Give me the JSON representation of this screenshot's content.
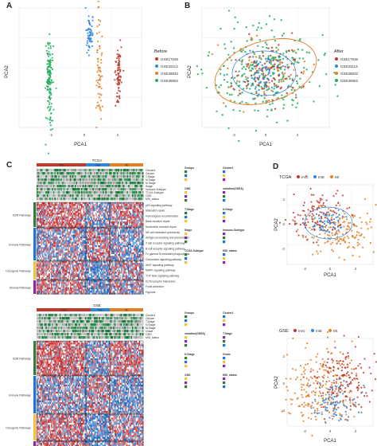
{
  "panels": {
    "A": {
      "letter": "A",
      "xlabel": "PCA1",
      "ylabel": "PCA2",
      "xticks": [
        "-2",
        "0",
        "2"
      ]
    },
    "B": {
      "letter": "B",
      "xlabel": "PCA1",
      "ylabel": "PCA2",
      "xticks": [
        "-2",
        "0",
        "2"
      ]
    },
    "C": {
      "letter": "C"
    },
    "D": {
      "letter": "D"
    }
  },
  "legend_before": {
    "title": "Before",
    "items": [
      "GSE17536",
      "GSE33113",
      "GSE38832",
      "GSE39582"
    ]
  },
  "legend_after": {
    "title": "After",
    "items": [
      "GSE17536",
      "GSE33113",
      "GSE38832",
      "GSE39582"
    ]
  },
  "colors": {
    "GSE17536": "#c0392b",
    "GSE33113": "#2e86de",
    "GSE38832": "#e67e22",
    "GSE39582": "#27ae60",
    "ImG": "#c0392b",
    "ImE": "#2e86de",
    "IIE": "#e67e22",
    "heat_high": "#c62828",
    "heat_low": "#1565c0",
    "heat_mid": "#f5f5f5"
  },
  "heatmap_tcga": {
    "title": "TCGA",
    "annot_rows": [
      "Cluster1",
      "Gender",
      "T.Stage",
      "N.Stage",
      "M.Stage",
      "Stage",
      "Immune.Subtype",
      "TCGA.Subtype",
      "CMS",
      "MSI_status"
    ],
    "groups": [
      "DDR Pathways",
      "Immune Pathways",
      "Oncogenic Pathways",
      "Stromal Pathways"
    ],
    "cluster_labels": [
      "ImG",
      "ImE",
      "IIE"
    ],
    "row_labels": [
      "p53 signaling pathway",
      "Mismatch repair",
      "Homologous recombination",
      "Base excision repair",
      "Nucleotide excision repair",
      "NK cell mediated cytotoxicity",
      "Antigen processing and presentation",
      "T cell receptor signaling pathway",
      "B cell receptor signaling pathway",
      "Fc gamma R-mediated phagocytosis",
      "Chemokine signaling pathway",
      "WNT signaling pathway",
      "MAPK signaling pathway",
      "TGF beta signaling pathway",
      "ECM receptor interaction",
      "Focal adhesion",
      "Hypoxia"
    ],
    "legend_heads": [
      "Groups",
      "Cluster1",
      "CMS",
      "variation(GSEA)",
      "T.Stage",
      "N.Stage",
      "Stage",
      "Immune.Subtype",
      "TCGA.Subtype",
      "MSI_status"
    ]
  },
  "heatmap_gse": {
    "title": "GSE",
    "annot_rows": [
      "Cluster1",
      "Gender",
      "T.Stage",
      "N.Stage",
      "M.Stage",
      "Grade",
      "CMS",
      "MSI_status"
    ],
    "groups": [
      "DDR Pathways",
      "Immune Pathways",
      "Oncogenic Pathways",
      "Stromal Pathways"
    ],
    "cluster_labels": [
      "ImG",
      "ImE",
      "IIE"
    ],
    "legend_heads": [
      "Groups",
      "Cluster1",
      "variation(GSEA)",
      "T.Stage",
      "N.Stage",
      "Grade",
      "CMS",
      "MSI_status"
    ]
  },
  "pca_tcga": {
    "title": "TCGA",
    "legend": [
      "ImG",
      "ImE",
      "IIE"
    ],
    "xlabel": "PCA1",
    "ylabel": "PCA2",
    "xticks": [
      "-2",
      "0",
      "2"
    ],
    "yticks": [
      "2",
      "0",
      "-2"
    ]
  },
  "pca_gse": {
    "title": "GSE",
    "legend": [
      "ImG",
      "ImE",
      "IIE"
    ],
    "xlabel": "PCA1",
    "ylabel": "PCA2",
    "xticks": [
      "-2",
      "0",
      "2"
    ],
    "yticks": [
      "2",
      "0",
      "-2"
    ]
  }
}
